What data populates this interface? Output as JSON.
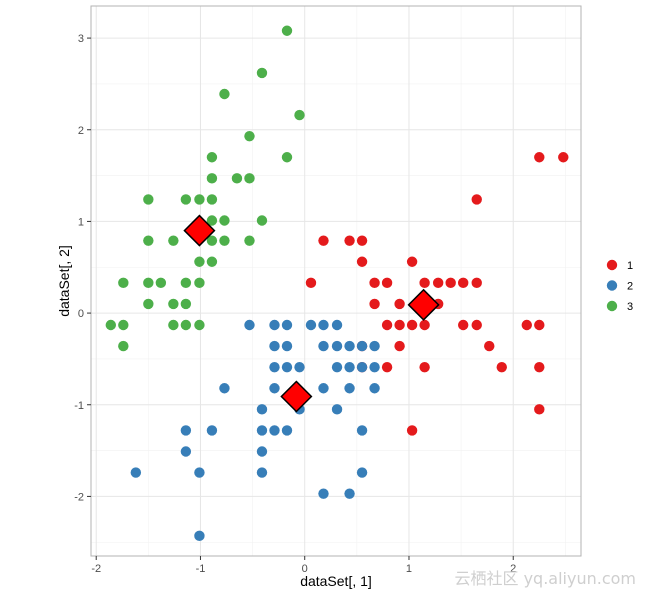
{
  "chart_data": {
    "type": "scatter",
    "title": "",
    "xlabel": "dataSet[, 1]",
    "ylabel": "dataSet[, 2]",
    "xlim": [
      -2.05,
      2.65
    ],
    "ylim": [
      -2.65,
      3.35
    ],
    "x_ticks": [
      -2,
      -1,
      0,
      1,
      2
    ],
    "y_ticks": [
      -2,
      -1,
      0,
      1,
      2,
      3
    ],
    "x_tick_labels": [
      "-2",
      "-1",
      "0",
      "1",
      "2"
    ],
    "y_tick_labels": [
      "-2",
      "-1",
      "0",
      "1",
      "2",
      "3"
    ],
    "grid": true,
    "legend_position": "right",
    "legend": [
      "1",
      "2",
      "3"
    ],
    "series": [
      {
        "name": "1",
        "color": "#e41a1c",
        "points": [
          [
            2.25,
            1.7
          ],
          [
            2.48,
            1.7
          ],
          [
            1.65,
            1.24
          ],
          [
            0.18,
            0.79
          ],
          [
            0.43,
            0.79
          ],
          [
            0.55,
            0.79
          ],
          [
            0.06,
            0.33
          ],
          [
            0.55,
            0.56
          ],
          [
            1.03,
            0.56
          ],
          [
            0.67,
            0.33
          ],
          [
            0.79,
            0.33
          ],
          [
            1.15,
            0.33
          ],
          [
            1.28,
            0.33
          ],
          [
            1.4,
            0.33
          ],
          [
            1.52,
            0.33
          ],
          [
            1.65,
            0.33
          ],
          [
            0.67,
            0.1
          ],
          [
            0.91,
            0.1
          ],
          [
            1.28,
            0.1
          ],
          [
            0.79,
            -0.13
          ],
          [
            0.91,
            -0.13
          ],
          [
            1.03,
            -0.13
          ],
          [
            1.15,
            -0.13
          ],
          [
            1.52,
            -0.13
          ],
          [
            1.65,
            -0.13
          ],
          [
            2.13,
            -0.13
          ],
          [
            2.25,
            -0.13
          ],
          [
            0.55,
            -0.36
          ],
          [
            0.91,
            -0.36
          ],
          [
            1.77,
            -0.36
          ],
          [
            0.55,
            -0.59
          ],
          [
            0.79,
            -0.59
          ],
          [
            1.15,
            -0.59
          ],
          [
            1.89,
            -0.59
          ],
          [
            2.25,
            -0.59
          ],
          [
            2.25,
            -1.05
          ],
          [
            1.03,
            -1.28
          ]
        ]
      },
      {
        "name": "2",
        "color": "#377eb8",
        "points": [
          [
            -0.53,
            -0.13
          ],
          [
            -0.29,
            -0.13
          ],
          [
            -0.17,
            -0.13
          ],
          [
            0.06,
            -0.13
          ],
          [
            0.18,
            -0.13
          ],
          [
            0.31,
            -0.13
          ],
          [
            -0.29,
            -0.36
          ],
          [
            -0.17,
            -0.36
          ],
          [
            0.18,
            -0.36
          ],
          [
            0.31,
            -0.36
          ],
          [
            0.43,
            -0.36
          ],
          [
            0.55,
            -0.36
          ],
          [
            0.67,
            -0.36
          ],
          [
            -0.29,
            -0.59
          ],
          [
            -0.17,
            -0.59
          ],
          [
            -0.05,
            -0.59
          ],
          [
            0.31,
            -0.59
          ],
          [
            0.43,
            -0.59
          ],
          [
            0.55,
            -0.59
          ],
          [
            0.67,
            -0.59
          ],
          [
            -0.77,
            -0.82
          ],
          [
            -0.29,
            -0.82
          ],
          [
            0.18,
            -0.82
          ],
          [
            0.43,
            -0.82
          ],
          [
            0.67,
            -0.82
          ],
          [
            -0.41,
            -1.05
          ],
          [
            -0.05,
            -1.05
          ],
          [
            0.31,
            -1.05
          ],
          [
            -1.14,
            -1.28
          ],
          [
            -0.89,
            -1.28
          ],
          [
            -0.41,
            -1.28
          ],
          [
            -0.29,
            -1.28
          ],
          [
            -0.17,
            -1.28
          ],
          [
            0.55,
            -1.28
          ],
          [
            -1.14,
            -1.51
          ],
          [
            -0.41,
            -1.51
          ],
          [
            -1.62,
            -1.74
          ],
          [
            -1.01,
            -1.74
          ],
          [
            -0.41,
            -1.74
          ],
          [
            0.55,
            -1.74
          ],
          [
            0.18,
            -1.97
          ],
          [
            0.43,
            -1.97
          ],
          [
            -1.01,
            -2.43
          ]
        ]
      },
      {
        "name": "3",
        "color": "#4daf4a",
        "points": [
          [
            -0.17,
            3.08
          ],
          [
            -0.41,
            2.62
          ],
          [
            -0.77,
            2.39
          ],
          [
            -0.05,
            2.16
          ],
          [
            -0.53,
            1.93
          ],
          [
            -0.89,
            1.7
          ],
          [
            -0.17,
            1.7
          ],
          [
            -0.89,
            1.47
          ],
          [
            -0.65,
            1.47
          ],
          [
            -0.53,
            1.47
          ],
          [
            -1.5,
            1.24
          ],
          [
            -1.14,
            1.24
          ],
          [
            -1.01,
            1.24
          ],
          [
            -0.89,
            1.24
          ],
          [
            -0.89,
            1.01
          ],
          [
            -0.77,
            1.01
          ],
          [
            -0.41,
            1.01
          ],
          [
            -1.5,
            0.79
          ],
          [
            -1.26,
            0.79
          ],
          [
            -0.89,
            0.79
          ],
          [
            -0.77,
            0.79
          ],
          [
            -0.53,
            0.79
          ],
          [
            -1.01,
            0.56
          ],
          [
            -0.89,
            0.56
          ],
          [
            -1.74,
            0.33
          ],
          [
            -1.5,
            0.33
          ],
          [
            -1.38,
            0.33
          ],
          [
            -1.14,
            0.33
          ],
          [
            -1.01,
            0.33
          ],
          [
            -1.5,
            0.1
          ],
          [
            -1.26,
            0.1
          ],
          [
            -1.14,
            0.1
          ],
          [
            -1.86,
            -0.13
          ],
          [
            -1.74,
            -0.13
          ],
          [
            -1.26,
            -0.13
          ],
          [
            -1.14,
            -0.13
          ],
          [
            -1.01,
            -0.13
          ],
          [
            -1.74,
            -0.36
          ]
        ]
      }
    ],
    "centroids": {
      "color": "#ff0000",
      "points": [
        [
          -1.01,
          0.9
        ],
        [
          -0.08,
          -0.91
        ],
        [
          1.14,
          0.09
        ]
      ]
    }
  },
  "watermark": {
    "text": "云栖社区 yq.aliyun.com"
  }
}
